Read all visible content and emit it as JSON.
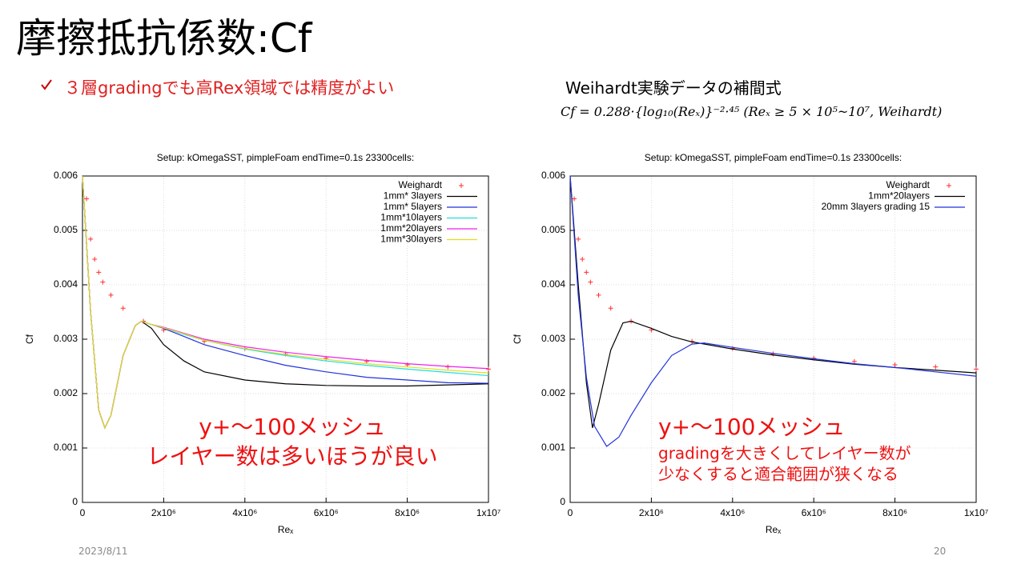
{
  "slide": {
    "title": "摩擦抵抗係数:Cf",
    "bullet": "３層gradingでも高Rex領域では精度がよい",
    "formula_heading": "Weihardt実験データの補間式",
    "formula": "Cf = 0.288·{log₁₀(Reₓ)}⁻²·⁴⁵ (Reₓ ≥ 5 × 10⁵~10⁷, Weihardt)",
    "date": "2023/8/11",
    "page": "20"
  },
  "chart_data": [
    {
      "type": "line",
      "title": "Setup: kOmegaSST, pimpleFoam endTime=0.1s 23300cells:",
      "x_label": "Reₓ",
      "y_label": "Cf",
      "grid": true,
      "legend": "top-right",
      "xlim": [
        0,
        10000000
      ],
      "xticks": [
        0,
        {
          "value": 2000000,
          "label": "2x10⁶"
        },
        {
          "value": 4000000,
          "label": "4x10⁶"
        },
        {
          "value": 6000000,
          "label": "6x10⁶"
        },
        {
          "value": 8000000,
          "label": "8x10⁶"
        },
        {
          "value": 10000000,
          "label": "1x10⁷"
        }
      ],
      "ylim": [
        0,
        0.006
      ],
      "yticks": [
        0,
        0.001,
        0.002,
        0.003,
        0.004,
        0.005,
        0.006
      ],
      "annotations": [
        "y+～100メッシュ",
        "レイヤー数は多いほうが良い"
      ],
      "series": [
        {
          "name": "Weighardt",
          "style": "points",
          "color": "#ff3030",
          "x": [
            100000,
            200000,
            300000,
            400000,
            500000,
            700000,
            1000000,
            1500000,
            2000000,
            3000000,
            4000000,
            5000000,
            6000000,
            7000000,
            8000000,
            9000000,
            10000000
          ],
          "values": [
            0.00558,
            0.00484,
            0.00447,
            0.00423,
            0.00405,
            0.00381,
            0.00357,
            0.00333,
            0.00317,
            0.00296,
            0.00283,
            0.00273,
            0.00265,
            0.00259,
            0.00253,
            0.00249,
            0.00245
          ]
        },
        {
          "name": "1mm*  3layers",
          "style": "line",
          "color": "#000000",
          "x": [
            0,
            200000,
            400000,
            550000,
            700000,
            1000000,
            1300000,
            1450000,
            1700000,
            2000000,
            2500000,
            3000000,
            4000000,
            5000000,
            6000000,
            7000000,
            8000000,
            9000000,
            10000000
          ],
          "values": [
            0.006,
            0.0035,
            0.0017,
            0.00137,
            0.0016,
            0.0027,
            0.00325,
            0.00333,
            0.0032,
            0.0029,
            0.0026,
            0.0024,
            0.00225,
            0.00218,
            0.00215,
            0.00214,
            0.00214,
            0.00216,
            0.00218
          ]
        },
        {
          "name": "1mm*  5layers",
          "style": "line",
          "color": "#2233dd",
          "x": [
            0,
            200000,
            400000,
            550000,
            700000,
            1000000,
            1300000,
            1450000,
            1700000,
            2000000,
            2500000,
            3000000,
            4000000,
            5000000,
            6000000,
            7000000,
            8000000,
            9000000,
            10000000
          ],
          "values": [
            0.006,
            0.0035,
            0.0017,
            0.00137,
            0.0016,
            0.0027,
            0.00325,
            0.00333,
            0.00327,
            0.0032,
            0.00305,
            0.0029,
            0.0027,
            0.00252,
            0.0024,
            0.0023,
            0.00225,
            0.0022,
            0.00219
          ]
        },
        {
          "name": "1mm*10layers",
          "style": "line",
          "color": "#22dddd",
          "x": [
            0,
            200000,
            400000,
            550000,
            700000,
            1000000,
            1300000,
            1450000,
            1700000,
            2000000,
            2500000,
            3000000,
            4000000,
            5000000,
            6000000,
            7000000,
            8000000,
            9000000,
            10000000
          ],
          "values": [
            0.006,
            0.0035,
            0.0017,
            0.00137,
            0.0016,
            0.0027,
            0.00325,
            0.00333,
            0.00327,
            0.00321,
            0.00309,
            0.00298,
            0.00282,
            0.0027,
            0.0026,
            0.00252,
            0.00245,
            0.00239,
            0.00233
          ]
        },
        {
          "name": "1mm*20layers",
          "style": "line",
          "color": "#ee22ee",
          "x": [
            0,
            200000,
            400000,
            550000,
            700000,
            1000000,
            1300000,
            1450000,
            1700000,
            2000000,
            2500000,
            3000000,
            4000000,
            5000000,
            6000000,
            7000000,
            8000000,
            9000000,
            10000000
          ],
          "values": [
            0.006,
            0.0035,
            0.0017,
            0.00137,
            0.0016,
            0.0027,
            0.00325,
            0.00333,
            0.00327,
            0.00322,
            0.00311,
            0.003,
            0.00286,
            0.00276,
            0.00268,
            0.00261,
            0.00255,
            0.0025,
            0.00246
          ]
        },
        {
          "name": "1mm*30layers",
          "style": "line",
          "color": "#e0e020",
          "x": [
            0,
            200000,
            400000,
            550000,
            700000,
            1000000,
            1300000,
            1450000,
            1700000,
            2000000,
            2500000,
            3000000,
            4000000,
            5000000,
            6000000,
            7000000,
            8000000,
            9000000,
            10000000
          ],
          "values": [
            0.006,
            0.0035,
            0.0017,
            0.00137,
            0.0016,
            0.0027,
            0.00325,
            0.00333,
            0.00327,
            0.00321,
            0.0031,
            0.00298,
            0.00283,
            0.00272,
            0.00263,
            0.00255,
            0.00249,
            0.00243,
            0.00238
          ]
        }
      ]
    },
    {
      "type": "line",
      "title": "Setup: kOmegaSST, pimpleFoam endTime=0.1s 23300cells:",
      "x_label": "Reₓ",
      "y_label": "Cf",
      "grid": true,
      "legend": "top-right",
      "xlim": [
        0,
        10000000
      ],
      "xticks": [
        0,
        {
          "value": 2000000,
          "label": "2x10⁶"
        },
        {
          "value": 4000000,
          "label": "4x10⁶"
        },
        {
          "value": 6000000,
          "label": "6x10⁶"
        },
        {
          "value": 8000000,
          "label": "8x10⁶"
        },
        {
          "value": 10000000,
          "label": "1x10⁷"
        }
      ],
      "ylim": [
        0,
        0.006
      ],
      "yticks": [
        0,
        0.001,
        0.002,
        0.003,
        0.004,
        0.005,
        0.006
      ],
      "annotations": [
        "y+～100メッシュ",
        "gradingを大きくしてレイヤー数が",
        "少なくすると適合範囲が狭くなる"
      ],
      "series": [
        {
          "name": "Weighardt",
          "style": "points",
          "color": "#ff3030",
          "x": [
            100000,
            200000,
            300000,
            400000,
            500000,
            700000,
            1000000,
            1500000,
            2000000,
            3000000,
            4000000,
            5000000,
            6000000,
            7000000,
            8000000,
            9000000,
            10000000
          ],
          "values": [
            0.00558,
            0.00484,
            0.00447,
            0.00423,
            0.00405,
            0.00381,
            0.00357,
            0.00333,
            0.00317,
            0.00296,
            0.00283,
            0.00273,
            0.00265,
            0.00259,
            0.00253,
            0.00249,
            0.00245
          ]
        },
        {
          "name": "1mm*20layers",
          "style": "line",
          "color": "#000000",
          "x": [
            0,
            200000,
            400000,
            550000,
            700000,
            1000000,
            1300000,
            1500000,
            2000000,
            2500000,
            3000000,
            4000000,
            5000000,
            6000000,
            7000000,
            8000000,
            9000000,
            10000000
          ],
          "values": [
            0.006,
            0.004,
            0.0022,
            0.00137,
            0.0018,
            0.0028,
            0.0033,
            0.00333,
            0.0032,
            0.00305,
            0.00295,
            0.00282,
            0.00271,
            0.00262,
            0.00254,
            0.00248,
            0.00243,
            0.00238
          ]
        },
        {
          "name": "20mm 3layers grading 15",
          "style": "line",
          "color": "#2233dd",
          "x": [
            0,
            200000,
            400000,
            600000,
            900000,
            1200000,
            1500000,
            2000000,
            2500000,
            3000000,
            3300000,
            4000000,
            5000000,
            6000000,
            7000000,
            8000000,
            9000000,
            10000000
          ],
          "values": [
            0.006,
            0.0038,
            0.0023,
            0.0014,
            0.00103,
            0.0012,
            0.0016,
            0.0022,
            0.0027,
            0.00291,
            0.00293,
            0.00285,
            0.00274,
            0.00264,
            0.00255,
            0.00248,
            0.0024,
            0.00232
          ]
        }
      ]
    }
  ]
}
